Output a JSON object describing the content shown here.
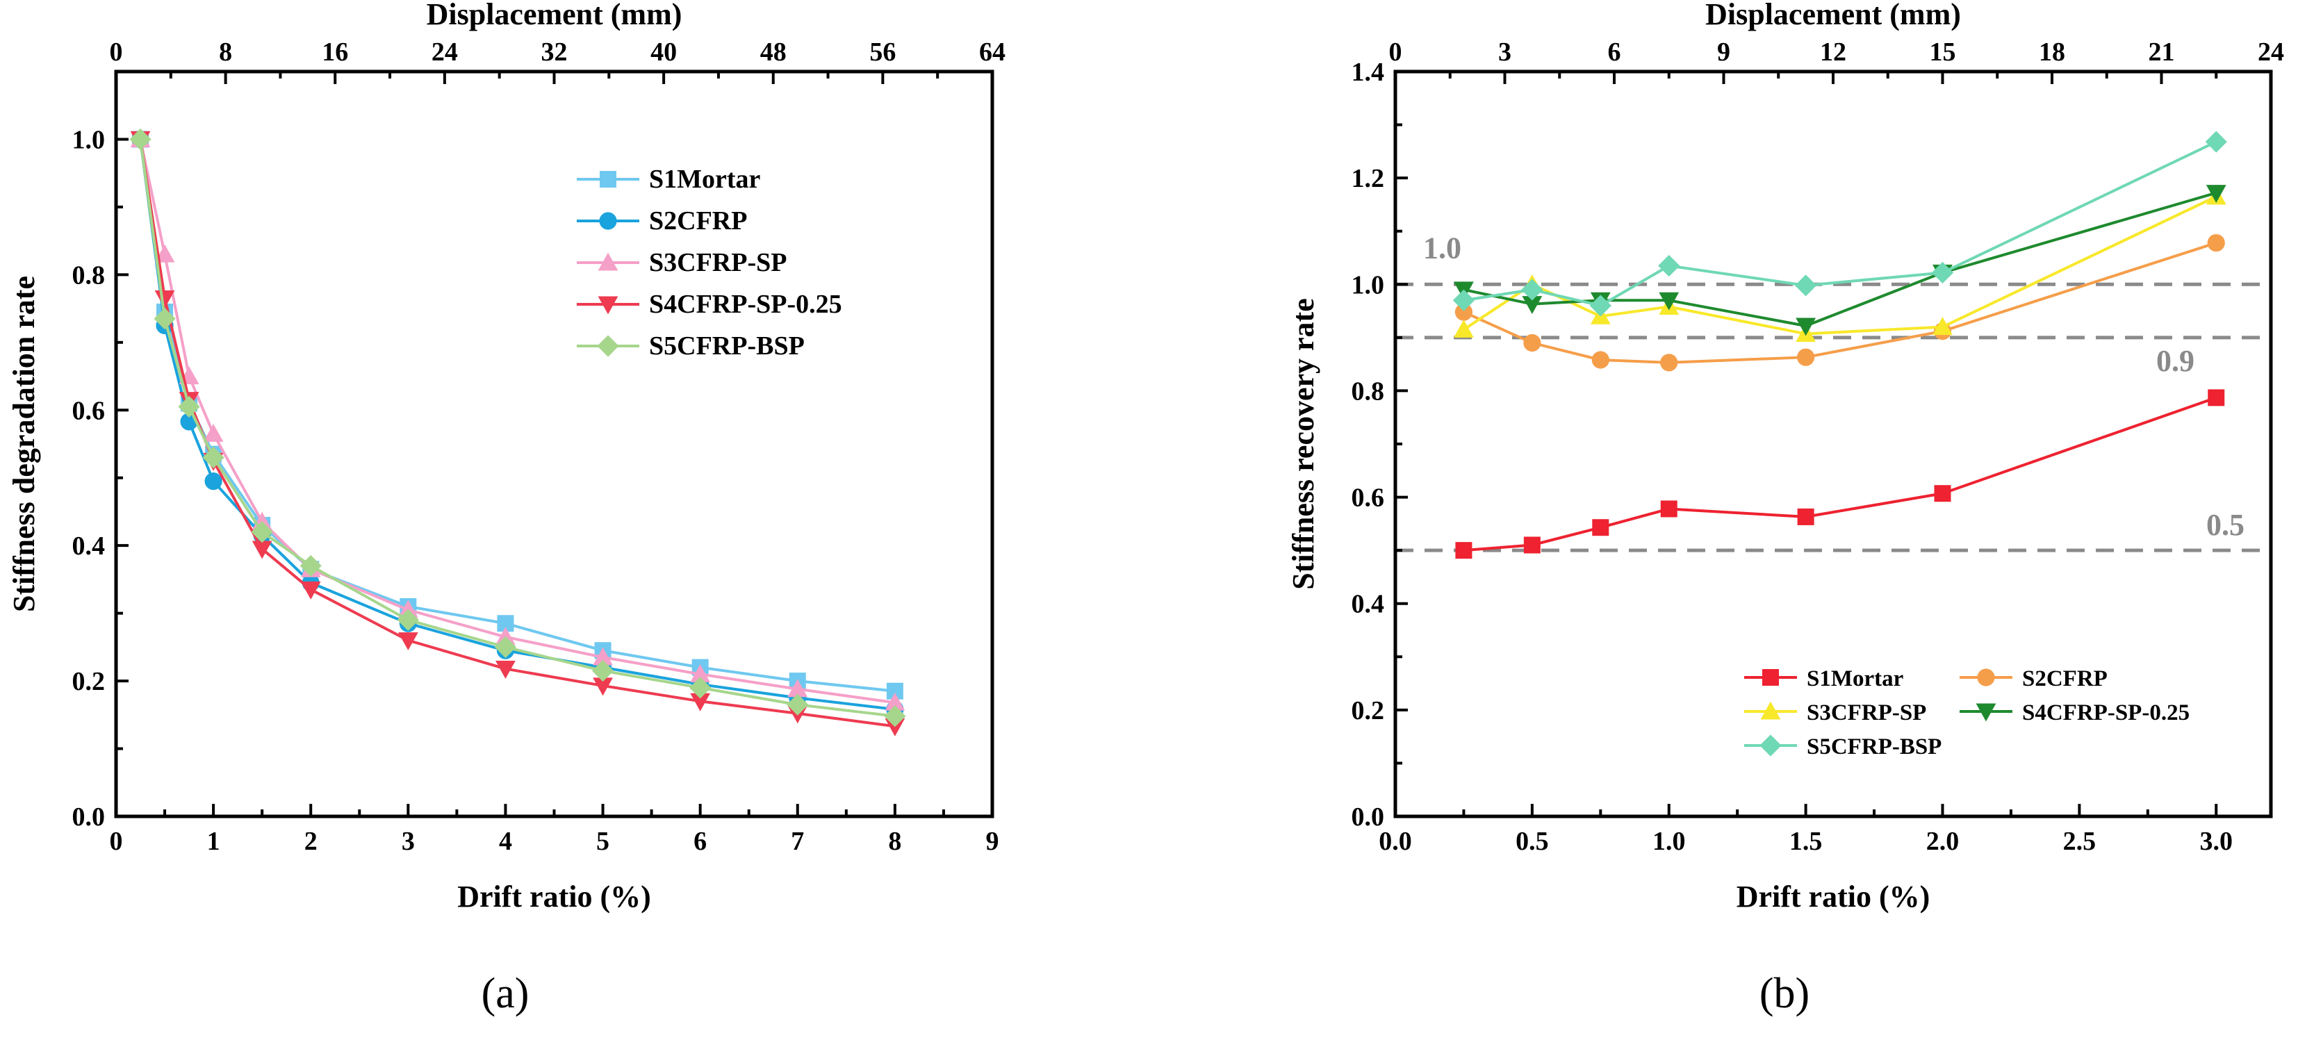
{
  "chart_data": [
    {
      "type": "line",
      "panel_label": "(a)",
      "xlabel": "Drift ratio (%)",
      "ylabel": "Stiffness degradation rate",
      "x2label": "Displacement (mm)",
      "xlim": [
        0,
        9
      ],
      "ylim": [
        0,
        1.1
      ],
      "x2lim": [
        0,
        64
      ],
      "xticks": [
        "0",
        "1",
        "2",
        "3",
        "4",
        "5",
        "6",
        "7",
        "8",
        "9"
      ],
      "yticks": [
        "0.0",
        "0.2",
        "0.4",
        "0.6",
        "0.8",
        "1.0"
      ],
      "x2ticks": [
        "0",
        "8",
        "16",
        "24",
        "32",
        "40",
        "48",
        "56",
        "64"
      ],
      "legend_position": "top-right",
      "grid": false,
      "series": [
        {
          "name": "S1Mortar",
          "color": "#6fc8f0",
          "marker": "square",
          "x": [
            0.25,
            0.5,
            0.75,
            1,
            1.5,
            2,
            3,
            4,
            5,
            6,
            7,
            8
          ],
          "y": [
            1.0,
            0.745,
            0.61,
            0.535,
            0.43,
            0.365,
            0.31,
            0.285,
            0.245,
            0.22,
            0.2,
            0.185
          ]
        },
        {
          "name": "S2CFRP",
          "color": "#1aa3dd",
          "marker": "circle",
          "x": [
            0.25,
            0.5,
            0.75,
            1,
            1.5,
            2,
            3,
            4,
            5,
            6,
            7,
            8
          ],
          "y": [
            1.0,
            0.725,
            0.583,
            0.495,
            0.415,
            0.345,
            0.285,
            0.245,
            0.22,
            0.195,
            0.175,
            0.158
          ]
        },
        {
          "name": "S3CFRP-SP",
          "color": "#f5a0c8",
          "marker": "triangle-up",
          "x": [
            0.25,
            0.5,
            0.75,
            1,
            1.5,
            2,
            3,
            4,
            5,
            6,
            7,
            8
          ],
          "y": [
            1.0,
            0.83,
            0.65,
            0.565,
            0.435,
            0.365,
            0.305,
            0.265,
            0.235,
            0.21,
            0.188,
            0.168
          ]
        },
        {
          "name": "S4CFRP-SP-0.25",
          "color": "#ee3b50",
          "marker": "triangle-down",
          "x": [
            0.25,
            0.5,
            0.75,
            1,
            1.5,
            2,
            3,
            4,
            5,
            6,
            7,
            8
          ],
          "y": [
            1.0,
            0.765,
            0.615,
            0.525,
            0.395,
            0.335,
            0.26,
            0.218,
            0.193,
            0.17,
            0.152,
            0.133
          ]
        },
        {
          "name": "S5CFRP-BSP",
          "color": "#a6d68c",
          "marker": "diamond",
          "x": [
            0.25,
            0.5,
            0.75,
            1,
            1.5,
            2,
            3,
            4,
            5,
            6,
            7,
            8
          ],
          "y": [
            1.0,
            0.735,
            0.605,
            0.53,
            0.42,
            0.37,
            0.29,
            0.25,
            0.215,
            0.19,
            0.165,
            0.148
          ]
        }
      ]
    },
    {
      "type": "line",
      "panel_label": "(b)",
      "xlabel": "Drift ratio (%)",
      "ylabel": "Stiffness recovery rate",
      "x2label": "Displacement (mm)",
      "xlim": [
        0,
        3.2
      ],
      "ylim": [
        0,
        1.4
      ],
      "x2lim": [
        0,
        24
      ],
      "xticks": [
        "0.0",
        "0.5",
        "1.0",
        "1.5",
        "2.0",
        "2.5",
        "3.0"
      ],
      "yticks": [
        "0.0",
        "0.2",
        "0.4",
        "0.6",
        "0.8",
        "1.0",
        "1.2",
        "1.4"
      ],
      "x2ticks": [
        "0",
        "3",
        "6",
        "9",
        "12",
        "15",
        "18",
        "21",
        "24"
      ],
      "legend_position": "bottom-right",
      "grid": false,
      "reference_lines": [
        {
          "y": 1.0,
          "label": "1.0",
          "label_side": "left"
        },
        {
          "y": 0.9,
          "label": "0.9",
          "label_side": "right"
        },
        {
          "y": 0.5,
          "label": "0.5",
          "label_side": "right"
        }
      ],
      "series": [
        {
          "name": "S1Mortar",
          "color": "#ee2230",
          "marker": "square",
          "x": [
            0.25,
            0.5,
            0.75,
            1,
            1.5,
            2,
            3
          ],
          "y": [
            0.5,
            0.51,
            0.543,
            0.578,
            0.563,
            0.607,
            0.787
          ]
        },
        {
          "name": "S2CFRP",
          "color": "#f59e4a",
          "marker": "circle",
          "x": [
            0.25,
            0.5,
            0.75,
            1,
            1.5,
            2,
            3
          ],
          "y": [
            0.948,
            0.89,
            0.858,
            0.853,
            0.863,
            0.912,
            1.078
          ]
        },
        {
          "name": "S3CFRP-SP",
          "color": "#f8e82a",
          "marker": "triangle-up",
          "x": [
            0.25,
            0.5,
            0.75,
            1,
            1.5,
            2,
            3
          ],
          "y": [
            0.915,
            1.0,
            0.94,
            0.958,
            0.907,
            0.92,
            1.165
          ]
        },
        {
          "name": "S4CFRP-SP-0.25",
          "color": "#1e8a2e",
          "marker": "triangle-down",
          "x": [
            0.25,
            0.5,
            0.75,
            1,
            1.5,
            2,
            3
          ],
          "y": [
            0.99,
            0.963,
            0.97,
            0.97,
            0.922,
            1.022,
            1.172
          ]
        },
        {
          "name": "S5CFRP-BSP",
          "color": "#6fd8b4",
          "marker": "diamond",
          "x": [
            0.25,
            0.5,
            0.75,
            1,
            1.5,
            2,
            3
          ],
          "y": [
            0.97,
            0.99,
            0.96,
            1.035,
            0.998,
            1.022,
            1.268
          ]
        }
      ]
    }
  ]
}
